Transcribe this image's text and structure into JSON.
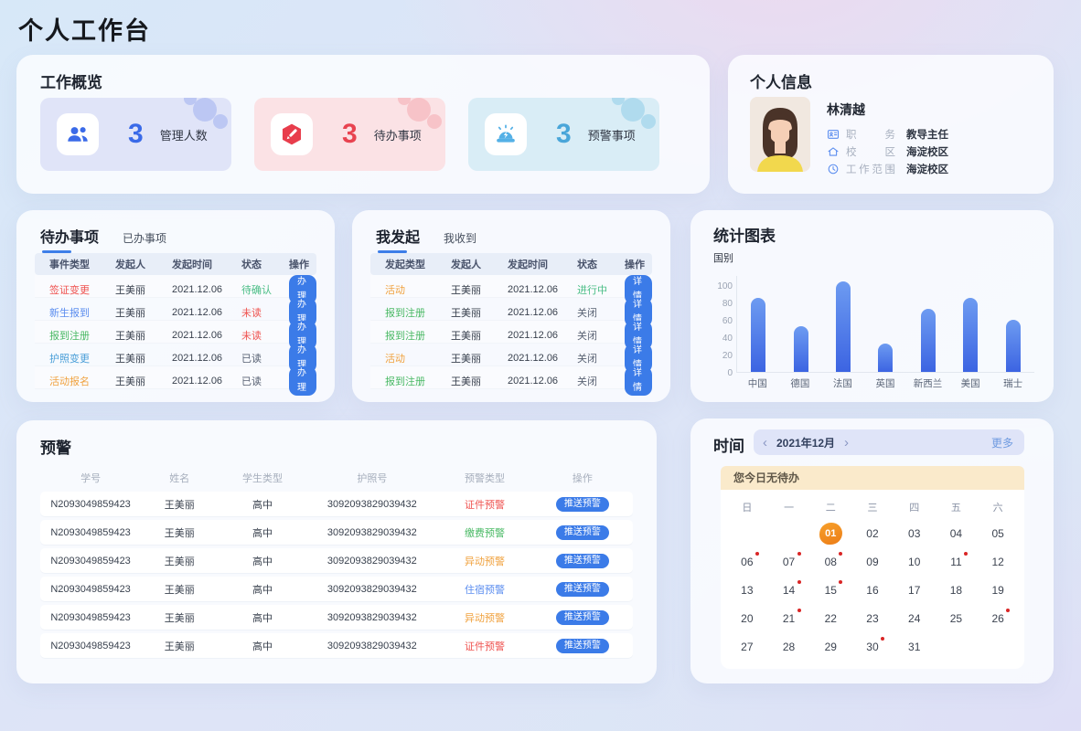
{
  "page_title": "个人工作台",
  "overview": {
    "title": "工作概览",
    "stats": [
      {
        "value": "3",
        "label": "管理人数",
        "icon": "users-icon",
        "accent": "#3a6ae8",
        "bg": "#e0e4f8",
        "circle": "rgba(98,126,229,0.28)"
      },
      {
        "value": "3",
        "label": "待办事项",
        "icon": "task-hexagon-icon",
        "accent": "#e84350",
        "bg": "#fbe2e5",
        "circle": "rgba(238,130,140,0.32)"
      },
      {
        "value": "3",
        "label": "预警事项",
        "icon": "alarm-icon",
        "accent": "#4aa6d9",
        "bg": "#d9edf6",
        "circle": "rgba(110,190,225,0.38)"
      }
    ]
  },
  "profile": {
    "title": "个人信息",
    "name": "林清越",
    "fields": [
      {
        "label": "职务",
        "value": "教导主任",
        "icon": "id-badge-icon"
      },
      {
        "label": "校区",
        "value": "海淀校区",
        "icon": "home-icon"
      },
      {
        "label": "工作范围",
        "value": "海淀校区",
        "icon": "clock-icon"
      }
    ]
  },
  "todo_panel": {
    "tab_active": "待办事项",
    "tab_inactive": "已办事项",
    "columns": [
      "事件类型",
      "发起人",
      "发起时间",
      "状态",
      "操作"
    ],
    "action_label": "办理",
    "rows": [
      {
        "type": "签证变更",
        "type_color": "#ef5350",
        "person": "王美丽",
        "time": "2021.12.06",
        "status": "待确认",
        "status_color": "#49bd85"
      },
      {
        "type": "新生报到",
        "type_color": "#5b8def",
        "person": "王美丽",
        "time": "2021.12.06",
        "status": "未读",
        "status_color": "#ef5350"
      },
      {
        "type": "报到注册",
        "type_color": "#49b964",
        "person": "王美丽",
        "time": "2021.12.06",
        "status": "未读",
        "status_color": "#ef5350"
      },
      {
        "type": "护照变更",
        "type_color": "#4a9fd8",
        "person": "王美丽",
        "time": "2021.12.06",
        "status": "已读",
        "status_color": "#596273"
      },
      {
        "type": "活动报名",
        "type_color": "#f0a23f",
        "person": "王美丽",
        "time": "2021.12.06",
        "status": "已读",
        "status_color": "#596273"
      }
    ]
  },
  "initiated_panel": {
    "tab_active": "我发起",
    "tab_inactive": "我收到",
    "columns": [
      "发起类型",
      "发起人",
      "发起时间",
      "状态",
      "操作"
    ],
    "action_label": "详情",
    "rows": [
      {
        "type": "活动",
        "type_color": "#f0a23f",
        "person": "王美丽",
        "time": "2021.12.06",
        "status": "进行中",
        "status_color": "#49bd85"
      },
      {
        "type": "报到注册",
        "type_color": "#49b964",
        "person": "王美丽",
        "time": "2021.12.06",
        "status": "关闭",
        "status_color": "#596273"
      },
      {
        "type": "报到注册",
        "type_color": "#49b964",
        "person": "王美丽",
        "time": "2021.12.06",
        "status": "关闭",
        "status_color": "#596273"
      },
      {
        "type": "活动",
        "type_color": "#f0a23f",
        "person": "王美丽",
        "time": "2021.12.06",
        "status": "关闭",
        "status_color": "#596273"
      },
      {
        "type": "报到注册",
        "type_color": "#49b964",
        "person": "王美丽",
        "time": "2021.12.06",
        "status": "关闭",
        "status_color": "#596273"
      }
    ]
  },
  "chart_panel": {
    "title": "统计图表",
    "axis_label": "国别"
  },
  "chart_data": {
    "type": "bar",
    "title": "统计图表",
    "xlabel": "国别",
    "ylabel": "",
    "categories": [
      "中国",
      "德国",
      "法国",
      "英国",
      "新西兰",
      "美国",
      "瑞士"
    ],
    "values": [
      85,
      53,
      104,
      33,
      73,
      85,
      60
    ],
    "ylim": [
      0,
      112
    ],
    "yticks": [
      0,
      20,
      40,
      60,
      80,
      100
    ],
    "grid": false,
    "bar_color_top": "#6d9bf1",
    "bar_color_bottom": "#3c64e2"
  },
  "warning_panel": {
    "title": "预警",
    "columns": [
      "学号",
      "姓名",
      "学生类型",
      "护照号",
      "预警类型",
      "操作"
    ],
    "action_label": "推送预警",
    "rows": [
      {
        "student_id": "N2093049859423",
        "name": "王美丽",
        "student_type": "高中",
        "passport": "3092093829039432",
        "warning_type": "证件预警",
        "warning_color": "#ef5350"
      },
      {
        "student_id": "N2093049859423",
        "name": "王美丽",
        "student_type": "高中",
        "passport": "3092093829039432",
        "warning_type": "缴费预警",
        "warning_color": "#49b964"
      },
      {
        "student_id": "N2093049859423",
        "name": "王美丽",
        "student_type": "高中",
        "passport": "3092093829039432",
        "warning_type": "异动预警",
        "warning_color": "#f0a23f"
      },
      {
        "student_id": "N2093049859423",
        "name": "王美丽",
        "student_type": "高中",
        "passport": "3092093829039432",
        "warning_type": "住宿预警",
        "warning_color": "#5b8def"
      },
      {
        "student_id": "N2093049859423",
        "name": "王美丽",
        "student_type": "高中",
        "passport": "3092093829039432",
        "warning_type": "异动预警",
        "warwarning_color": "#f0a23f",
        "warning_color": "#f0a23f"
      },
      {
        "student_id": "N2093049859423",
        "name": "王美丽",
        "student_type": "高中",
        "passport": "3092093829039432",
        "warning_type": "证件预警",
        "warning_color": "#ef5350"
      }
    ]
  },
  "calendar_panel": {
    "title": "时间",
    "prev_icon": "‹",
    "next_icon": "›",
    "month_label": "2021年12月",
    "more_label": "更多",
    "banner": "您今日无待办",
    "weekdays": [
      "日",
      "一",
      "二",
      "三",
      "四",
      "五",
      "六"
    ],
    "days": [
      {
        "label": ""
      },
      {
        "label": ""
      },
      {
        "label": "01",
        "selected": true
      },
      {
        "label": "02"
      },
      {
        "label": "03"
      },
      {
        "label": "04"
      },
      {
        "label": "05"
      },
      {
        "label": "06",
        "dot": true
      },
      {
        "label": "07",
        "dot": true
      },
      {
        "label": "08",
        "dot": true
      },
      {
        "label": "09"
      },
      {
        "label": "10"
      },
      {
        "label": "11",
        "dot": true
      },
      {
        "label": "12"
      },
      {
        "label": "13"
      },
      {
        "label": "14",
        "dot": true
      },
      {
        "label": "15",
        "dot": true
      },
      {
        "label": "16"
      },
      {
        "label": "17"
      },
      {
        "label": "18"
      },
      {
        "label": "19"
      },
      {
        "label": "20"
      },
      {
        "label": "21",
        "dot": true
      },
      {
        "label": "22"
      },
      {
        "label": "23"
      },
      {
        "label": "24"
      },
      {
        "label": "25"
      },
      {
        "label": "26",
        "dot": true
      },
      {
        "label": "27"
      },
      {
        "label": "28"
      },
      {
        "label": "29"
      },
      {
        "label": "30",
        "dot": true
      },
      {
        "label": "31"
      },
      {
        "label": ""
      },
      {
        "label": ""
      }
    ]
  }
}
